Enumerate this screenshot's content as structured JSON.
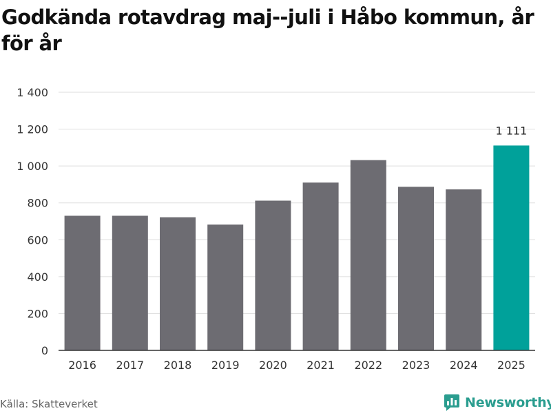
{
  "title": "Godkända rotavdrag maj--juli i Håbo kommun, år för år",
  "source": "Källa: Skatteverket",
  "brand": {
    "name": "Newsworthy",
    "color": "#2a9d8f",
    "icon": "bar-chart-speech-bubble-icon"
  },
  "colors": {
    "bar": "#6d6c72",
    "highlight": "#00a19a",
    "grid": "#dddddd",
    "axis": "#333333"
  },
  "chart_data": {
    "type": "bar",
    "title": "Godkända rotavdrag maj--juli i Håbo kommun, år för år",
    "xlabel": "",
    "ylabel": "",
    "categories": [
      "2016",
      "2017",
      "2018",
      "2019",
      "2020",
      "2021",
      "2022",
      "2023",
      "2024",
      "2025"
    ],
    "values": [
      730,
      730,
      722,
      682,
      812,
      910,
      1032,
      887,
      873,
      1111
    ],
    "highlight_index": 9,
    "data_labels": [
      {
        "index": 9,
        "text": "1 111"
      }
    ],
    "ylim": [
      0,
      1400
    ],
    "yticks": [
      0,
      200,
      400,
      600,
      800,
      1000,
      1200,
      1400
    ],
    "ytick_labels": [
      "0",
      "200",
      "400",
      "600",
      "800",
      "1 000",
      "1 200",
      "1 400"
    ],
    "grid": true,
    "legend": "none"
  }
}
